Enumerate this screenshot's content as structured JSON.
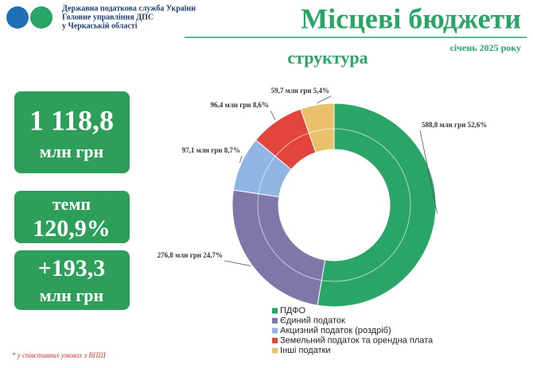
{
  "header": {
    "org_lines": [
      "Державна податкова служба України",
      "Головне управління ДПС",
      "у Черкаській області"
    ],
    "title": "Місцеві бюджети",
    "period": "січень 2025 року",
    "subtitle": "структура"
  },
  "kpis": [
    {
      "lines": [
        "1 118,8",
        "млн грн"
      ]
    },
    {
      "lines": [
        "темп",
        "120,9%"
      ]
    },
    {
      "lines": [
        "+193,3",
        "млн грн"
      ]
    }
  ],
  "footnote": "* у співставних умовах з ВПШ",
  "chart_data": {
    "type": "donut",
    "categories": [
      "ПДФО",
      "Єдиний податок",
      "Акцизний податок (роздріб)",
      "Земельний податок та орендна плата",
      "Інші податки"
    ],
    "values": [
      588.8,
      276.8,
      97.1,
      96.4,
      59.7
    ],
    "value_labels": [
      "588,8 млн грн 52,6%",
      "276,8 млн грн 24,7%",
      "97,1 млн грн 8,7%",
      "96,4 млн грн 8,6%",
      "59,7 млн грн 5,4%"
    ],
    "colors": [
      "#2aa568",
      "#7d78a8",
      "#8fb5e3",
      "#e2453b",
      "#e9c16d"
    ],
    "legend": "bottom"
  }
}
